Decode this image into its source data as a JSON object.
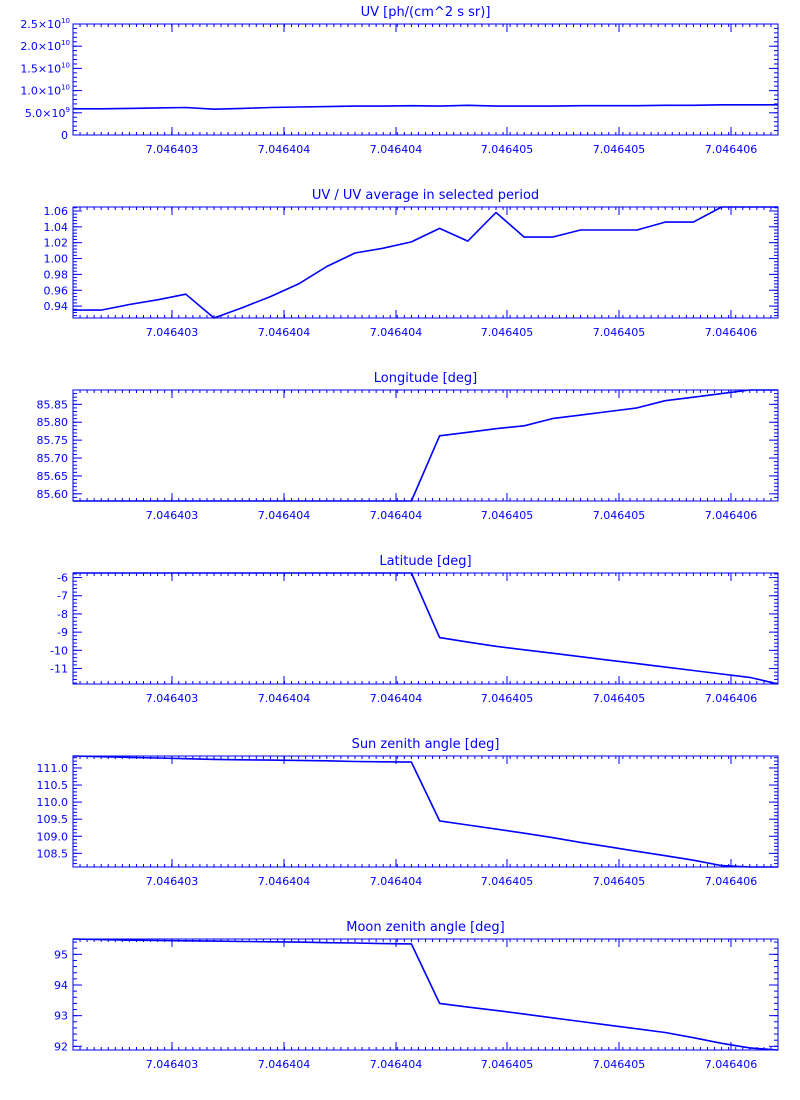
{
  "colors": {
    "line": "#0000ff",
    "background": "#ffffff"
  },
  "x_tick_labels": [
    "7.046403",
    "7.046404",
    "7.046404",
    "7.046405",
    "7.046405",
    "7.046406"
  ],
  "chart_data": [
    {
      "type": "line",
      "title": "UV [ph/(cm^2 s sr)]",
      "xlabel": "",
      "ylabel": "",
      "ylim": [
        0,
        25000000000
      ],
      "yticks": [
        {
          "base": "0",
          "exp": ""
        },
        {
          "base": "5.0×10",
          "exp": "9"
        },
        {
          "base": "1.0×10",
          "exp": "10"
        },
        {
          "base": "1.5×10",
          "exp": "10"
        },
        {
          "base": "2.0×10",
          "exp": "10"
        },
        {
          "base": "2.5×10",
          "exp": "10"
        }
      ],
      "ytick_values": [
        0,
        5000000000,
        10000000000,
        15000000000,
        20000000000,
        25000000000
      ],
      "x": [
        0,
        1,
        2,
        3,
        4,
        5,
        6,
        7,
        8,
        9,
        10,
        11,
        12,
        13,
        14,
        15,
        16,
        17,
        18,
        19,
        20,
        21,
        22,
        23,
        24,
        25
      ],
      "values": [
        5900000000,
        5900000000,
        6000000000,
        6100000000,
        6200000000,
        5800000000,
        6000000000,
        6200000000,
        6300000000,
        6400000000,
        6500000000,
        6500000000,
        6600000000,
        6500000000,
        6700000000,
        6500000000,
        6500000000,
        6500000000,
        6600000000,
        6600000000,
        6600000000,
        6700000000,
        6700000000,
        6800000000,
        6800000000,
        6800000000
      ]
    },
    {
      "type": "line",
      "title": "UV / UV average in selected period",
      "xlabel": "",
      "ylabel": "",
      "ylim": [
        0.925,
        1.065
      ],
      "yticks": [
        "0.94",
        "0.96",
        "0.98",
        "1.00",
        "1.02",
        "1.04",
        "1.06"
      ],
      "ytick_values": [
        0.94,
        0.96,
        0.98,
        1.0,
        1.02,
        1.04,
        1.06
      ],
      "x": [
        0,
        1,
        2,
        3,
        4,
        5,
        6,
        7,
        8,
        9,
        10,
        11,
        12,
        13,
        14,
        15,
        16,
        17,
        18,
        19,
        20,
        21,
        22,
        23,
        24,
        25
      ],
      "values": [
        0.935,
        0.935,
        0.942,
        0.948,
        0.955,
        0.925,
        0.938,
        0.952,
        0.968,
        0.99,
        1.007,
        1.013,
        1.021,
        1.038,
        1.022,
        1.058,
        1.027,
        1.027,
        1.036,
        1.036,
        1.036,
        1.046,
        1.046,
        1.065,
        1.065,
        1.065
      ]
    },
    {
      "type": "line",
      "title": "Longitude [deg]",
      "xlabel": "",
      "ylabel": "",
      "ylim": [
        85.58,
        85.89
      ],
      "yticks": [
        "85.60",
        "85.65",
        "85.70",
        "85.75",
        "85.80",
        "85.85"
      ],
      "ytick_values": [
        85.6,
        85.65,
        85.7,
        85.75,
        85.8,
        85.85
      ],
      "x": [
        0,
        1,
        2,
        3,
        4,
        5,
        6,
        7,
        8,
        9,
        10,
        11,
        12,
        13,
        14,
        15,
        16,
        17,
        18,
        19,
        20,
        21,
        22,
        23,
        24,
        25
      ],
      "values": [
        85.58,
        85.58,
        85.58,
        85.58,
        85.58,
        85.58,
        85.58,
        85.58,
        85.58,
        85.58,
        85.58,
        85.58,
        85.58,
        85.762,
        85.772,
        85.782,
        85.79,
        85.81,
        85.82,
        85.83,
        85.84,
        85.86,
        85.87,
        85.88,
        85.89,
        85.89
      ]
    },
    {
      "type": "line",
      "title": "Latitude [deg]",
      "xlabel": "",
      "ylabel": "",
      "ylim": [
        -11.85,
        -5.75
      ],
      "yticks": [
        "-11",
        "-10",
        "-9",
        "-8",
        "-7",
        "-6"
      ],
      "ytick_values": [
        -11,
        -10,
        -9,
        -8,
        -7,
        -6
      ],
      "x": [
        0,
        1,
        2,
        3,
        4,
        5,
        6,
        7,
        8,
        9,
        10,
        11,
        12,
        13,
        14,
        15,
        16,
        17,
        18,
        19,
        20,
        21,
        22,
        23,
        24,
        25
      ],
      "values": [
        -5.75,
        -5.75,
        -5.75,
        -5.75,
        -5.75,
        -5.75,
        -5.75,
        -5.75,
        -5.75,
        -5.75,
        -5.75,
        -5.75,
        -5.75,
        -9.3,
        -9.55,
        -9.78,
        -9.97,
        -10.16,
        -10.35,
        -10.54,
        -10.73,
        -10.92,
        -11.11,
        -11.3,
        -11.49,
        -11.85
      ]
    },
    {
      "type": "line",
      "title": "Sun zenith angle [deg]",
      "xlabel": "",
      "ylabel": "",
      "ylim": [
        108.1,
        111.35
      ],
      "yticks": [
        "108.5",
        "109.0",
        "109.5",
        "110.0",
        "110.5",
        "111.0"
      ],
      "ytick_values": [
        108.5,
        109.0,
        109.5,
        110.0,
        110.5,
        111.0
      ],
      "x": [
        0,
        1,
        2,
        3,
        4,
        5,
        6,
        7,
        8,
        9,
        10,
        11,
        12,
        13,
        14,
        15,
        16,
        17,
        18,
        19,
        20,
        21,
        22,
        23,
        24,
        25
      ],
      "values": [
        111.35,
        111.33,
        111.31,
        111.29,
        111.27,
        111.25,
        111.24,
        111.23,
        111.22,
        111.21,
        111.19,
        111.18,
        111.17,
        109.45,
        109.33,
        109.21,
        109.09,
        108.96,
        108.82,
        108.69,
        108.56,
        108.43,
        108.3,
        108.14,
        108.1,
        108.1
      ]
    },
    {
      "type": "line",
      "title": "Moon zenith angle [deg]",
      "xlabel": "",
      "ylabel": "",
      "ylim": [
        91.88,
        95.5
      ],
      "yticks": [
        "92",
        "93",
        "94",
        "95"
      ],
      "ytick_values": [
        92,
        93,
        94,
        95
      ],
      "x": [
        0,
        1,
        2,
        3,
        4,
        5,
        6,
        7,
        8,
        9,
        10,
        11,
        12,
        13,
        14,
        15,
        16,
        17,
        18,
        19,
        20,
        21,
        22,
        23,
        24,
        25
      ],
      "values": [
        95.5,
        95.48,
        95.46,
        95.45,
        95.44,
        95.43,
        95.42,
        95.41,
        95.4,
        95.38,
        95.37,
        95.35,
        95.34,
        93.4,
        93.28,
        93.17,
        93.05,
        92.93,
        92.81,
        92.69,
        92.57,
        92.45,
        92.28,
        92.1,
        91.95,
        91.88
      ]
    }
  ]
}
